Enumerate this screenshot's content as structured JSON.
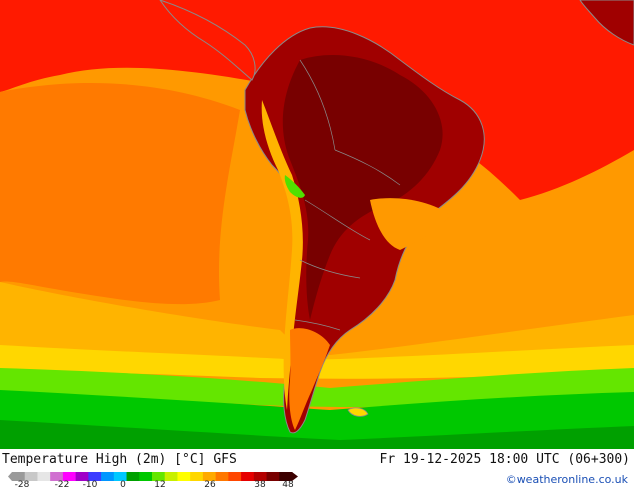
{
  "map": {
    "title": "Temperature High (2m) [°C] GFS",
    "datetime": "Fr 19-12-2025 18:00 UTC (06+300)",
    "credit": "©weatheronline.co.uk"
  },
  "legend": {
    "ticks": [
      "-28",
      "-22",
      "-10",
      "0",
      "12",
      "26",
      "38",
      "48"
    ],
    "colors": [
      "#9a9a9a",
      "#c8c8c8",
      "#e6e6e6",
      "#d070d0",
      "#ff00ff",
      "#a000c8",
      "#3c3cff",
      "#0096ff",
      "#00c8ff",
      "#00a000",
      "#00c800",
      "#64e600",
      "#c8f000",
      "#ffff00",
      "#ffd700",
      "#ffaa00",
      "#ff7800",
      "#ff4600",
      "#e60000",
      "#b40000",
      "#780000",
      "#3c0000"
    ]
  },
  "palette": {
    "red": "#ff1a00",
    "orange": "#ff9900",
    "deep_orange": "#ff7a00",
    "yellow_orange": "#ffb400",
    "dark_red": "#a00000",
    "darker_red": "#780000",
    "green": "#00c800",
    "light_green": "#50e000",
    "border": "#8a8a8a"
  }
}
